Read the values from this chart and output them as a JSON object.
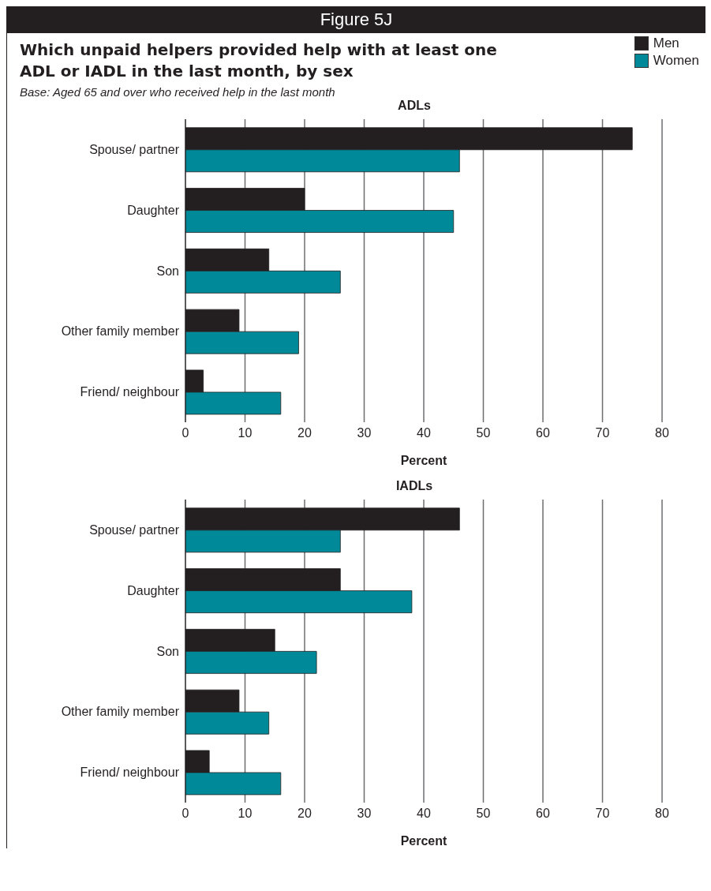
{
  "chart_data": [
    {
      "type": "other",
      "title": "Which unpaid helpers provided help with at least one ADL or IADL in the last month, by sex",
      "subtitle": "Base: Aged 65 and over who received help in the  last month",
      "annotations": [
        "Figure 5J"
      ]
    },
    {
      "type": "bar",
      "orientation": "horizontal",
      "title": "ADLs",
      "xlabel": "Percent",
      "categories": [
        "Spouse/ partner",
        "Daughter",
        "Son",
        "Other family member",
        "Friend/ neighbour"
      ],
      "series": [
        {
          "name": "Men",
          "color": "#231f20",
          "values": [
            75,
            20,
            14,
            9,
            3
          ]
        },
        {
          "name": "Women",
          "color": "#008998",
          "values": [
            46,
            45,
            26,
            19,
            16
          ]
        }
      ],
      "xlim": [
        0,
        80
      ],
      "xticks": [
        0,
        10,
        20,
        30,
        40,
        50,
        60,
        70,
        80
      ],
      "grid": "x",
      "legend": "top right"
    },
    {
      "type": "bar",
      "orientation": "horizontal",
      "title": "IADLs",
      "xlabel": "Percent",
      "categories": [
        "Spouse/ partner",
        "Daughter",
        "Son",
        "Other family member",
        "Friend/ neighbour"
      ],
      "series": [
        {
          "color": "#231f20",
          "values": [
            46,
            26,
            15,
            9,
            4
          ]
        },
        {
          "color": "#008998",
          "values": [
            26,
            38,
            22,
            14,
            16
          ]
        }
      ],
      "xlim": [
        0,
        80
      ],
      "xticks": [
        0,
        10,
        20,
        30,
        40,
        50,
        60,
        70,
        80
      ],
      "grid": "x"
    }
  ]
}
